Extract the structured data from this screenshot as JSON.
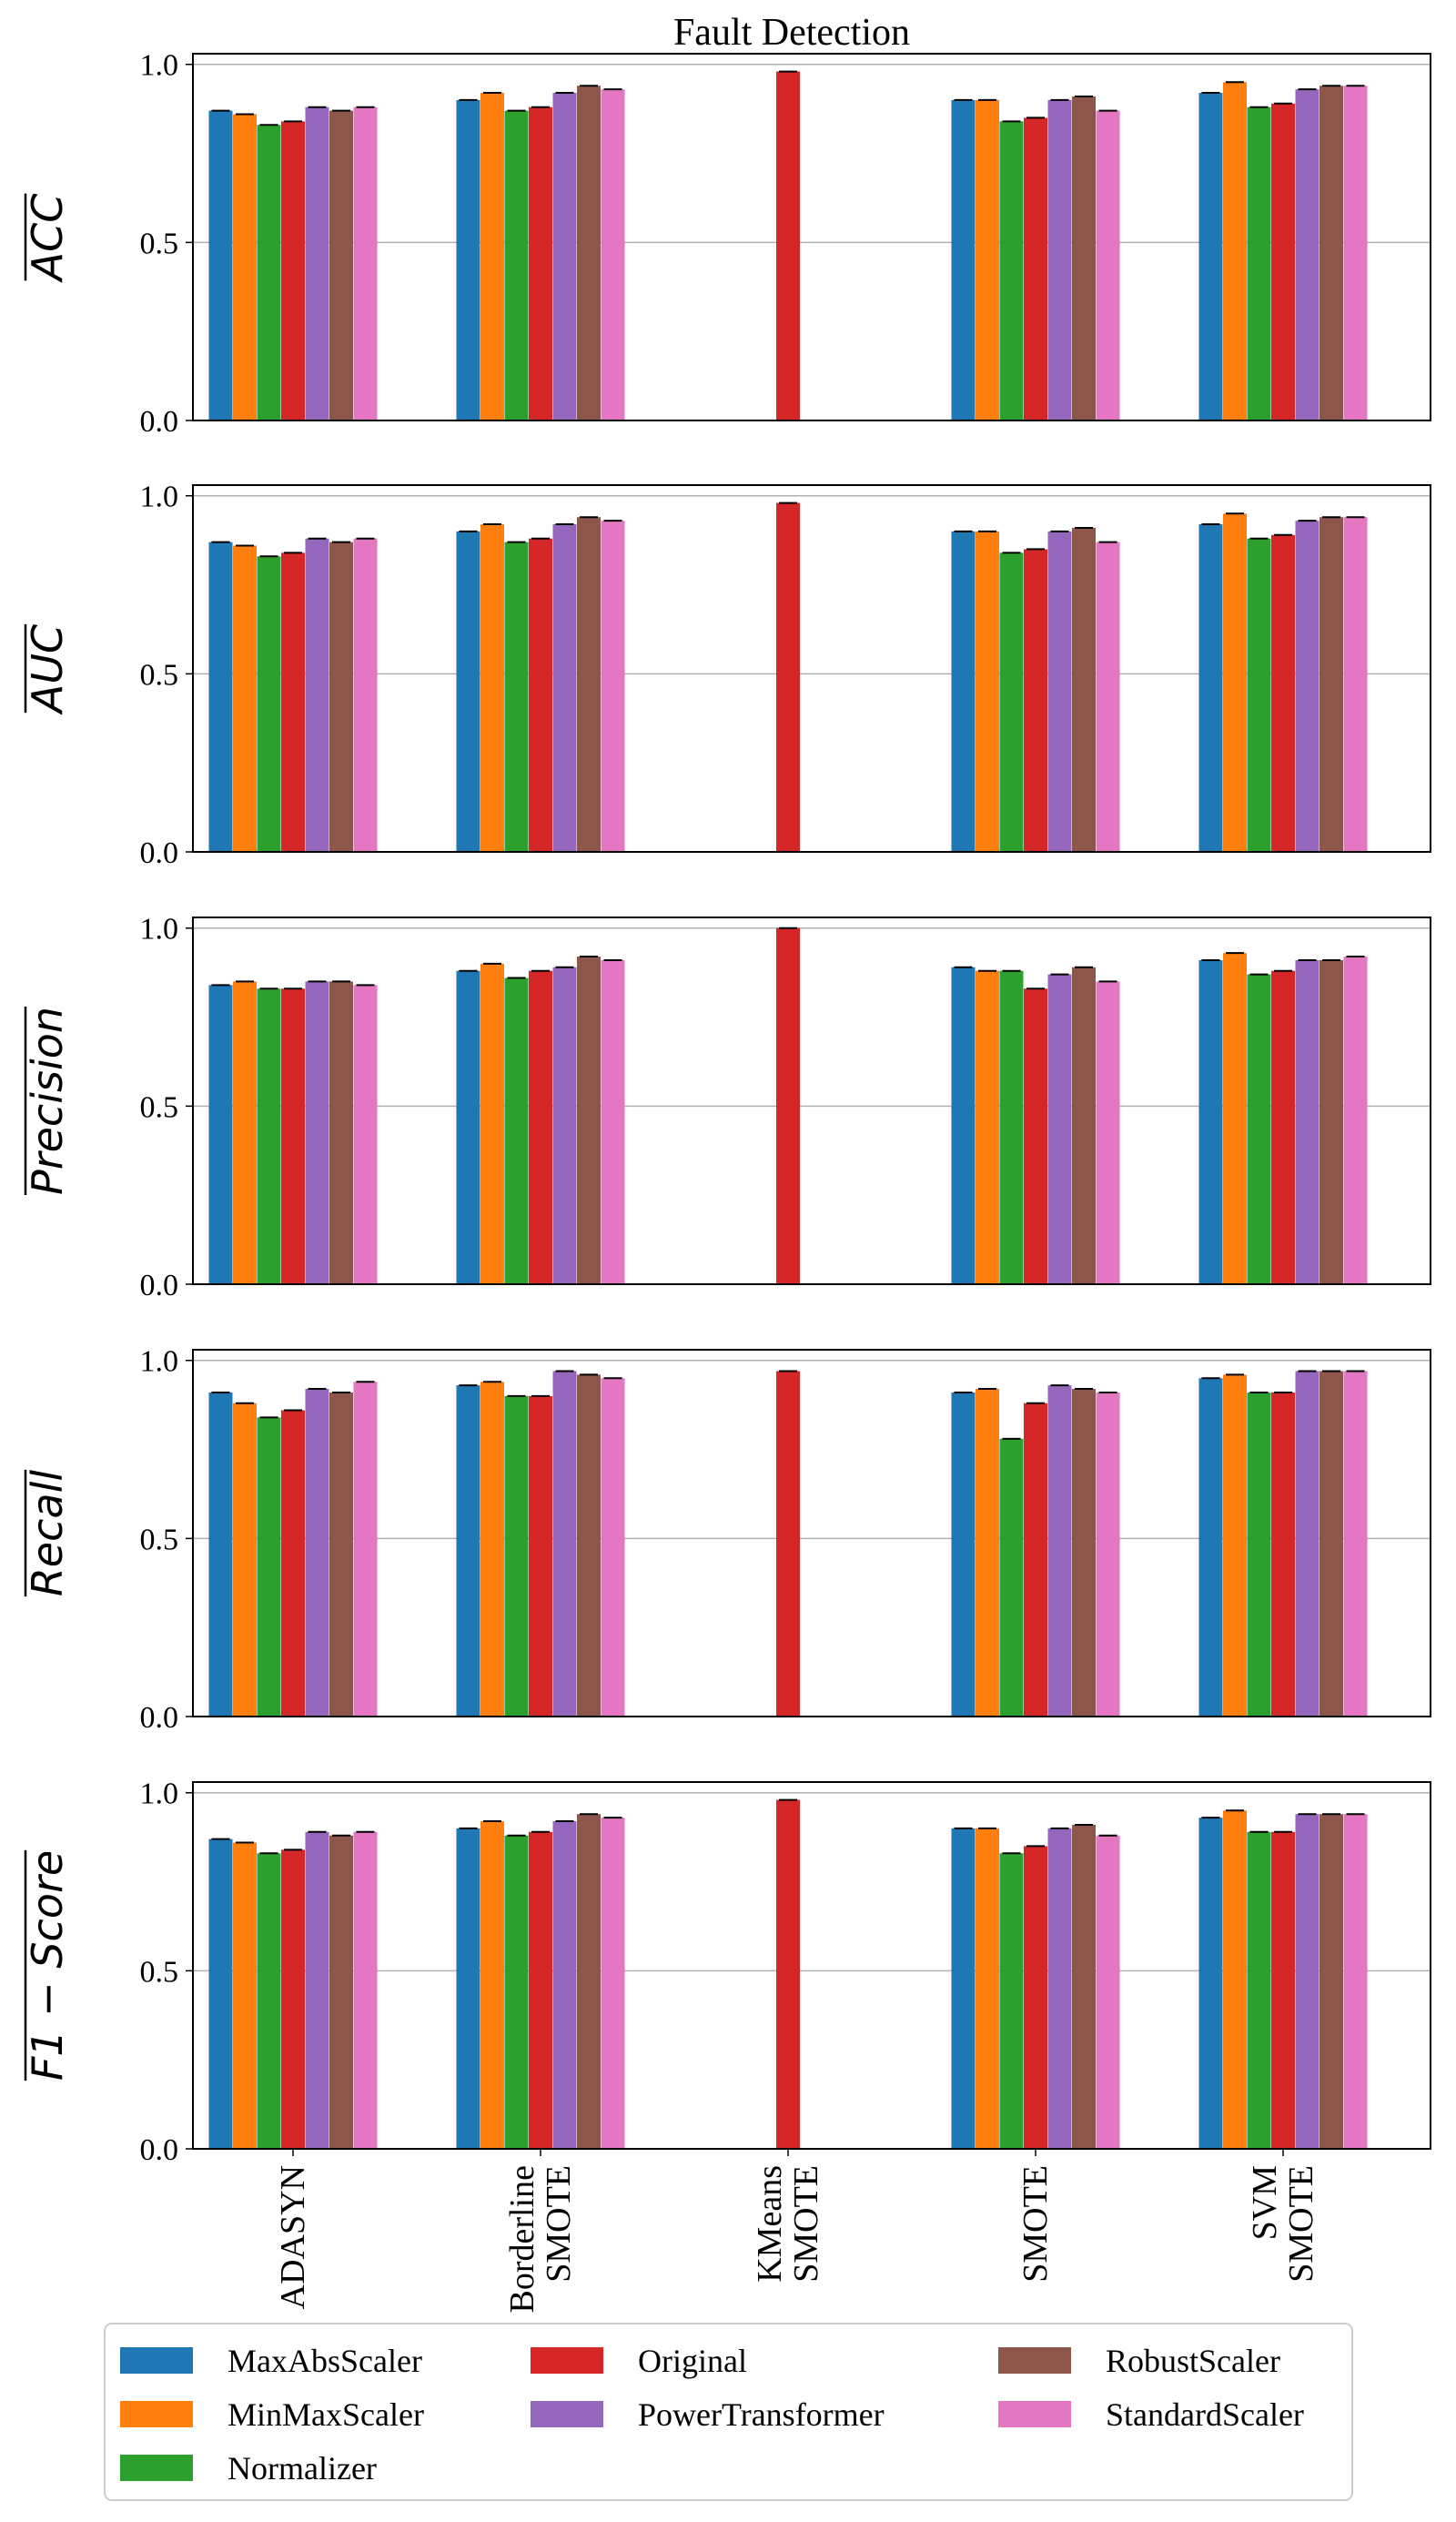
{
  "title": "Fault Detection",
  "chart_data": {
    "type": "bar",
    "title": "Fault Detection",
    "categories": [
      "ADASYN",
      "Borderline SMOTE",
      "KMeans SMOTE",
      "SMOTE",
      "SVM SMOTE"
    ],
    "category_lines": [
      [
        "ADASYN"
      ],
      [
        "Borderline",
        "SMOTE"
      ],
      [
        "KMeans",
        "SMOTE"
      ],
      [
        "SMOTE"
      ],
      [
        "SVM",
        "SMOTE"
      ]
    ],
    "series_names": [
      "MaxAbsScaler",
      "MinMaxScaler",
      "Normalizer",
      "Original",
      "PowerTransformer",
      "RobustScaler",
      "StandardScaler"
    ],
    "colors": [
      "#1f77b4",
      "#ff7f0e",
      "#2ca02c",
      "#d62728",
      "#9467bd",
      "#8c564b",
      "#e377c2"
    ],
    "legend": {
      "location": "bottom",
      "columns": [
        [
          "MaxAbsScaler",
          "MinMaxScaler",
          "Normalizer"
        ],
        [
          "Original",
          "PowerTransformer"
        ],
        [
          "RobustScaler",
          "StandardScaler"
        ]
      ]
    },
    "ylim": [
      0,
      1.03
    ],
    "yticks": [
      0.0,
      0.5,
      1.0
    ],
    "ytick_labels": [
      "0.0",
      "0.5",
      "1.0"
    ],
    "grid": true,
    "panels": [
      {
        "ylabel": "ACC",
        "series": [
          {
            "name": "MaxAbsScaler",
            "values": [
              0.87,
              0.9,
              0.0,
              0.9,
              0.92
            ]
          },
          {
            "name": "MinMaxScaler",
            "values": [
              0.86,
              0.92,
              0.0,
              0.9,
              0.95
            ]
          },
          {
            "name": "Normalizer",
            "values": [
              0.83,
              0.87,
              0.0,
              0.84,
              0.88
            ]
          },
          {
            "name": "Original",
            "values": [
              0.84,
              0.88,
              0.98,
              0.85,
              0.89
            ]
          },
          {
            "name": "PowerTransformer",
            "values": [
              0.88,
              0.92,
              0.0,
              0.9,
              0.93
            ]
          },
          {
            "name": "RobustScaler",
            "values": [
              0.87,
              0.94,
              0.0,
              0.91,
              0.94
            ]
          },
          {
            "name": "StandardScaler",
            "values": [
              0.88,
              0.93,
              0.0,
              0.87,
              0.94
            ]
          }
        ]
      },
      {
        "ylabel": "AUC",
        "series": [
          {
            "name": "MaxAbsScaler",
            "values": [
              0.87,
              0.9,
              0.0,
              0.9,
              0.92
            ]
          },
          {
            "name": "MinMaxScaler",
            "values": [
              0.86,
              0.92,
              0.0,
              0.9,
              0.95
            ]
          },
          {
            "name": "Normalizer",
            "values": [
              0.83,
              0.87,
              0.0,
              0.84,
              0.88
            ]
          },
          {
            "name": "Original",
            "values": [
              0.84,
              0.88,
              0.98,
              0.85,
              0.89
            ]
          },
          {
            "name": "PowerTransformer",
            "values": [
              0.88,
              0.92,
              0.0,
              0.9,
              0.93
            ]
          },
          {
            "name": "RobustScaler",
            "values": [
              0.87,
              0.94,
              0.0,
              0.91,
              0.94
            ]
          },
          {
            "name": "StandardScaler",
            "values": [
              0.88,
              0.93,
              0.0,
              0.87,
              0.94
            ]
          }
        ]
      },
      {
        "ylabel": "Precision",
        "series": [
          {
            "name": "MaxAbsScaler",
            "values": [
              0.84,
              0.88,
              0.0,
              0.89,
              0.91
            ]
          },
          {
            "name": "MinMaxScaler",
            "values": [
              0.85,
              0.9,
              0.0,
              0.88,
              0.93
            ]
          },
          {
            "name": "Normalizer",
            "values": [
              0.83,
              0.86,
              0.0,
              0.88,
              0.87
            ]
          },
          {
            "name": "Original",
            "values": [
              0.83,
              0.88,
              1.0,
              0.83,
              0.88
            ]
          },
          {
            "name": "PowerTransformer",
            "values": [
              0.85,
              0.89,
              0.0,
              0.87,
              0.91
            ]
          },
          {
            "name": "RobustScaler",
            "values": [
              0.85,
              0.92,
              0.0,
              0.89,
              0.91
            ]
          },
          {
            "name": "StandardScaler",
            "values": [
              0.84,
              0.91,
              0.0,
              0.85,
              0.92
            ]
          }
        ]
      },
      {
        "ylabel": "Recall",
        "series": [
          {
            "name": "MaxAbsScaler",
            "values": [
              0.91,
              0.93,
              0.0,
              0.91,
              0.95
            ]
          },
          {
            "name": "MinMaxScaler",
            "values": [
              0.88,
              0.94,
              0.0,
              0.92,
              0.96
            ]
          },
          {
            "name": "Normalizer",
            "values": [
              0.84,
              0.9,
              0.0,
              0.78,
              0.91
            ]
          },
          {
            "name": "Original",
            "values": [
              0.86,
              0.9,
              0.97,
              0.88,
              0.91
            ]
          },
          {
            "name": "PowerTransformer",
            "values": [
              0.92,
              0.97,
              0.0,
              0.93,
              0.97
            ]
          },
          {
            "name": "RobustScaler",
            "values": [
              0.91,
              0.96,
              0.0,
              0.92,
              0.97
            ]
          },
          {
            "name": "StandardScaler",
            "values": [
              0.94,
              0.95,
              0.0,
              0.91,
              0.97
            ]
          }
        ]
      },
      {
        "ylabel": "F1 − Score",
        "series": [
          {
            "name": "MaxAbsScaler",
            "values": [
              0.87,
              0.9,
              0.0,
              0.9,
              0.93
            ]
          },
          {
            "name": "MinMaxScaler",
            "values": [
              0.86,
              0.92,
              0.0,
              0.9,
              0.95
            ]
          },
          {
            "name": "Normalizer",
            "values": [
              0.83,
              0.88,
              0.0,
              0.83,
              0.89
            ]
          },
          {
            "name": "Original",
            "values": [
              0.84,
              0.89,
              0.98,
              0.85,
              0.89
            ]
          },
          {
            "name": "PowerTransformer",
            "values": [
              0.89,
              0.92,
              0.0,
              0.9,
              0.94
            ]
          },
          {
            "name": "RobustScaler",
            "values": [
              0.88,
              0.94,
              0.0,
              0.91,
              0.94
            ]
          },
          {
            "name": "StandardScaler",
            "values": [
              0.89,
              0.93,
              0.0,
              0.88,
              0.94
            ]
          }
        ]
      }
    ]
  }
}
